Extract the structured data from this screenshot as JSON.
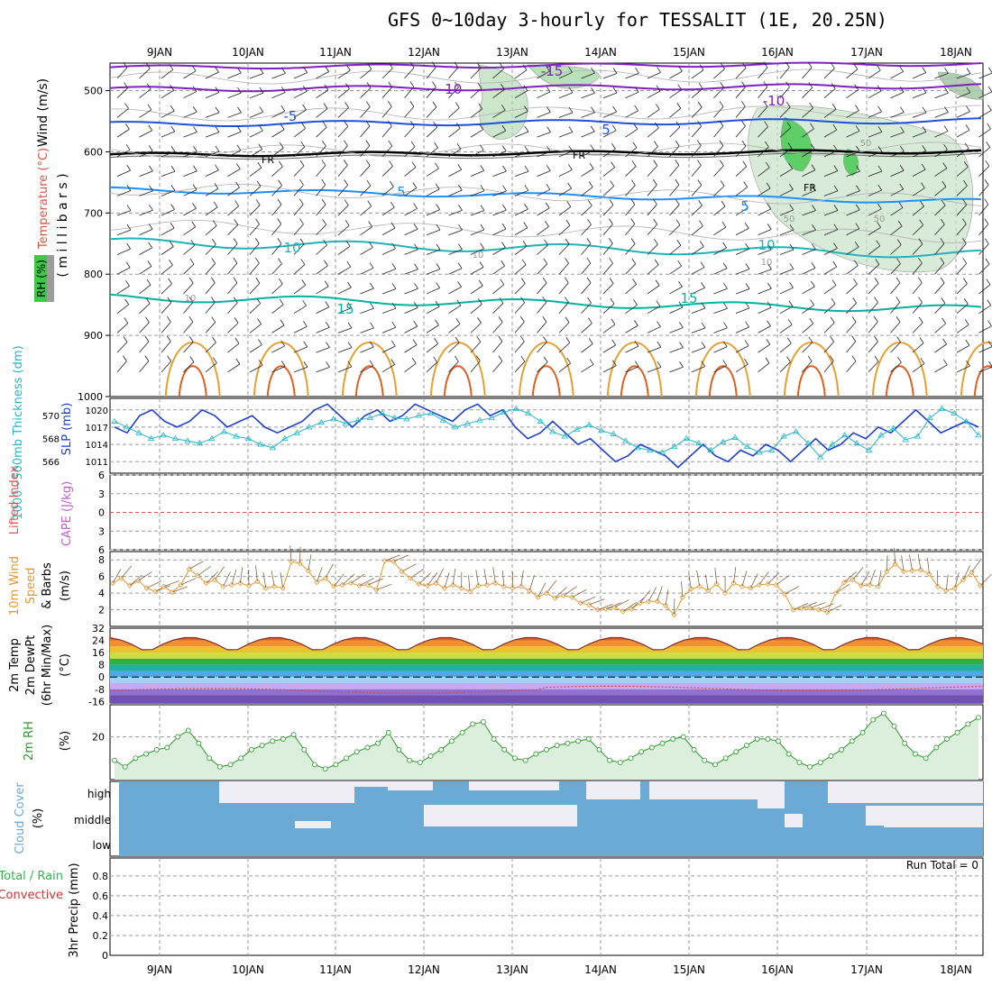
{
  "title": "GFS 0~10day 3-hourly for TESSALIT (1E, 20.25N)",
  "date_labels": [
    "9JAN",
    "10JAN",
    "11JAN",
    "12JAN",
    "13JAN",
    "14JAN",
    "15JAN",
    "16JAN",
    "17JAN",
    "18JAN"
  ],
  "colors": {
    "grid": "#9a9a9a",
    "frame": "#000000",
    "temp_line_warm": "#00b3a0",
    "temp_line_cool": "#1e90ff",
    "temp_line_cold": "#8020c0",
    "fr_line": "#000000",
    "rh_fill": "#2cb84a",
    "thick": "#25b8c8",
    "slp": "#1f3fcf",
    "wind10m": "#e8962a",
    "cape": "#c060d0",
    "li": "#e05050",
    "rh2m": "#2c9a2c",
    "cloud": "#6aaad4",
    "precip_total": "#2cb84a",
    "precip_conv": "#e03030"
  },
  "panels": {
    "upper": {
      "axis_label_wind": "Wind (m/s)",
      "axis_label_temp": "Temperature (°C)",
      "axis_label_mb": "( m i l l i b a r s )",
      "axis_label_rh": "RH (%)",
      "pressure_ticks": [
        "500",
        "600",
        "700",
        "800",
        "900",
        "1000"
      ]
    },
    "thickness": {
      "label_thick": "1000~500mb Thickness (dm)",
      "label_slp": "SLP (mb)",
      "thick_ticks": [
        "570",
        "568",
        "566"
      ],
      "slp_ticks": [
        "1020",
        "1017",
        "1014",
        "1011"
      ]
    },
    "stability": {
      "label_li": "Lifted Index",
      "label_cape": "CAPE (J/kg)",
      "ticks": [
        "6",
        "3",
        "0",
        "3",
        "6"
      ]
    },
    "wind10m": {
      "label_a": "10m Wind",
      "label_b": "Speed",
      "label_c": "& Barbs",
      "label_unit": "(m/s)",
      "ticks": [
        "8",
        "6",
        "4",
        "2"
      ]
    },
    "temp2m": {
      "label_a": "2m Temp",
      "label_b": "2m DewPt",
      "label_c": "(6hr Min/Max)",
      "label_unit": "(°C)",
      "ticks": [
        "32",
        "24",
        "16",
        "8",
        "0",
        "-8",
        "-16"
      ]
    },
    "rh2m": {
      "label_a": "2m RH",
      "label_unit": "(%)",
      "ticks": [
        "20"
      ]
    },
    "cloud": {
      "label_a": "Cloud Cover",
      "label_unit": "(%)",
      "levels": [
        "high",
        "middle",
        "low"
      ]
    },
    "precip": {
      "label_a": "3hr Precip (mm)",
      "label_total": "Total / Rain",
      "label_conv": "Convective",
      "run_total": "Run Total = 0",
      "ticks": [
        "0.8",
        "0.6",
        "0.4",
        "0.2",
        "0"
      ]
    }
  },
  "isotherm_labels": [
    "-15",
    "-10",
    "-10",
    "-5",
    "5",
    "FR",
    "FR",
    "FR",
    "5",
    "5",
    "10",
    "10",
    "15",
    "15",
    "10",
    "10",
    "10",
    "50",
    "50",
    "50"
  ],
  "chart_data": [
    {
      "type": "line",
      "name_panel": "2m RH",
      "x_unit": "3-hourly steps from 8 JAN 12Z",
      "ylim": [
        0,
        35
      ],
      "values": [
        9,
        6,
        10,
        12,
        14,
        15,
        20,
        23,
        17,
        10,
        6,
        7,
        10,
        14,
        16,
        18,
        19,
        21,
        14,
        7,
        5,
        7,
        10,
        13,
        15,
        17,
        22,
        14,
        9,
        8,
        11,
        14,
        18,
        22,
        26,
        27,
        19,
        14,
        10,
        9,
        12,
        14,
        16,
        17,
        18,
        19,
        14,
        9,
        8,
        10,
        13,
        15,
        17,
        19,
        20,
        14,
        9,
        7,
        10,
        13,
        16,
        19,
        19,
        18,
        12,
        8,
        6,
        8,
        11,
        14,
        18,
        22,
        28,
        31,
        25,
        17,
        12,
        10,
        15,
        19,
        22,
        26,
        29
      ]
    },
    {
      "type": "line",
      "name_panel": "10m Wind Speed",
      "ylim": [
        0,
        9
      ],
      "values": [
        5.2,
        5.8,
        4.9,
        5.5,
        4.6,
        4.2,
        4.8,
        4.1,
        5.0,
        6.9,
        6.1,
        5.2,
        5.6,
        4.8,
        5.0,
        5.2,
        4.9,
        5.4,
        4.6,
        4.8,
        4.6,
        7.8,
        7.6,
        6.7,
        5.3,
        5.8,
        4.8,
        5.0,
        5.2,
        4.9,
        5.0,
        4.4,
        7.9,
        7.8,
        6.6,
        5.8,
        5.1,
        4.9,
        5.2,
        4.6,
        5.0,
        4.6,
        4.2,
        4.9,
        5.0,
        5.2,
        4.8,
        4.6,
        4.8,
        4.3,
        3.5,
        4.0,
        3.4,
        3.7,
        3.5,
        2.8,
        2.6,
        2.0,
        2.1,
        2.3,
        1.8,
        2.1,
        2.8,
        3.0,
        3.0,
        2.5,
        1.4,
        3.5,
        4.5,
        4.8,
        4.3,
        5.1,
        4.0,
        5.2,
        4.8,
        4.6,
        5.0,
        5.1,
        5.0,
        3.9,
        2.0,
        2.2,
        2.2,
        2.0,
        1.7,
        4.0,
        5.3,
        5.6,
        4.9,
        5.0,
        4.8,
        6.6,
        7.5,
        6.6,
        6.7,
        6.8,
        6.3,
        4.8,
        4.3,
        4.6,
        5.6,
        6.5,
        4.9
      ]
    },
    {
      "type": "line",
      "name_panel": "SLP (mb)",
      "ylim": [
        1009,
        1022
      ],
      "values": [
        1017,
        1016,
        1019,
        1020,
        1018,
        1017,
        1018,
        1020,
        1019,
        1017,
        1018,
        1019,
        1017,
        1016,
        1017,
        1018,
        1020,
        1021,
        1019,
        1017,
        1019,
        1020,
        1018,
        1019,
        1021,
        1020,
        1019,
        1018,
        1020,
        1021,
        1019,
        1020,
        1017,
        1015,
        1016,
        1018,
        1016,
        1014,
        1015,
        1013,
        1011,
        1012,
        1014,
        1013,
        1012,
        1010,
        1012,
        1014,
        1012,
        1011,
        1013,
        1012,
        1014,
        1013,
        1011,
        1013,
        1015,
        1013,
        1014,
        1016,
        1015,
        1017,
        1016,
        1018,
        1020,
        1018,
        1016,
        1017,
        1018,
        1017
      ]
    },
    {
      "type": "line",
      "name_panel": "1000~500mb Thickness (dm)",
      "ylim": [
        565,
        571
      ],
      "values": [
        569.5,
        569,
        568.5,
        568,
        568.3,
        568,
        567.8,
        567.6,
        568,
        568.6,
        568.2,
        568,
        567.5,
        567.2,
        568,
        568.5,
        569,
        569.4,
        569.7,
        569.3,
        569.6,
        569.8,
        570.2,
        569.8,
        569.7,
        570,
        570.2,
        569.6,
        569,
        569.3,
        569.6,
        569.8,
        570.3,
        570.6,
        570.2,
        569.5,
        568.6,
        568.2,
        568.8,
        569.2,
        568.7,
        568.4,
        567.8,
        567.2,
        567,
        566.8,
        567.3,
        568,
        567.6,
        567,
        567.7,
        568.1,
        567.3,
        566.8,
        567,
        568.2,
        568.6,
        567.6,
        566.4,
        567.5,
        568.3,
        567.6,
        567,
        568.3,
        568.9,
        567.9,
        568.2,
        569.8,
        570.6,
        570.2,
        569.5,
        568.3
      ]
    }
  ]
}
